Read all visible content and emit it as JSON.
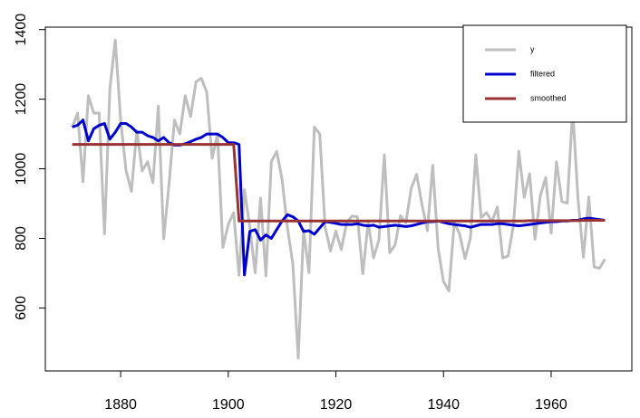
{
  "chart_data": {
    "type": "line",
    "x": [
      1871,
      1872,
      1873,
      1874,
      1875,
      1876,
      1877,
      1878,
      1879,
      1880,
      1881,
      1882,
      1883,
      1884,
      1885,
      1886,
      1887,
      1888,
      1889,
      1890,
      1891,
      1892,
      1893,
      1894,
      1895,
      1896,
      1897,
      1898,
      1899,
      1900,
      1901,
      1902,
      1903,
      1904,
      1905,
      1906,
      1907,
      1908,
      1909,
      1910,
      1911,
      1912,
      1913,
      1914,
      1915,
      1916,
      1917,
      1918,
      1919,
      1920,
      1921,
      1922,
      1923,
      1924,
      1925,
      1926,
      1927,
      1928,
      1929,
      1930,
      1931,
      1932,
      1933,
      1934,
      1935,
      1936,
      1937,
      1938,
      1939,
      1940,
      1941,
      1942,
      1943,
      1944,
      1945,
      1946,
      1947,
      1948,
      1949,
      1950,
      1951,
      1952,
      1953,
      1954,
      1955,
      1956,
      1957,
      1958,
      1959,
      1960,
      1961,
      1962,
      1963,
      1964,
      1965,
      1966,
      1967,
      1968,
      1969,
      1970
    ],
    "series": [
      {
        "name": "y",
        "color": "#bebebe",
        "values": [
          1120,
          1160,
          963,
          1210,
          1160,
          1160,
          813,
          1230,
          1370,
          1140,
          995,
          935,
          1110,
          994,
          1020,
          960,
          1180,
          799,
          958,
          1140,
          1100,
          1210,
          1150,
          1250,
          1260,
          1220,
          1030,
          1100,
          774,
          840,
          874,
          694,
          940,
          833,
          701,
          916,
          692,
          1020,
          1050,
          969,
          831,
          726,
          456,
          824,
          702,
          1120,
          1100,
          832,
          764,
          821,
          768,
          845,
          864,
          862,
          698,
          845,
          744,
          796,
          1040,
          759,
          781,
          865,
          845,
          944,
          984,
          897,
          822,
          1010,
          771,
          676,
          649,
          846,
          812,
          742,
          801,
          1040,
          860,
          874,
          848,
          890,
          744,
          749,
          838,
          1050,
          918,
          986,
          797,
          923,
          975,
          815,
          1020,
          906,
          901,
          1170,
          912,
          746,
          919,
          718,
          714,
          740
        ]
      },
      {
        "name": "filtered",
        "color": "#0000cd",
        "values": [
          1120,
          1125,
          1140,
          1080,
          1115,
          1125,
          1130,
          1085,
          1105,
          1130,
          1130,
          1120,
          1105,
          1105,
          1095,
          1090,
          1080,
          1090,
          1075,
          1068,
          1068,
          1072,
          1078,
          1085,
          1090,
          1100,
          1100,
          1100,
          1090,
          1075,
          1075,
          1070,
          695,
          820,
          825,
          795,
          810,
          800,
          825,
          850,
          868,
          862,
          850,
          820,
          822,
          812,
          830,
          848,
          846,
          843,
          840,
          840,
          840,
          842,
          838,
          836,
          838,
          832,
          834,
          836,
          838,
          836,
          834,
          836,
          840,
          844,
          848,
          848,
          850,
          846,
          842,
          840,
          838,
          836,
          832,
          836,
          840,
          840,
          840,
          842,
          842,
          840,
          838,
          836,
          838,
          840,
          842,
          844,
          846,
          848,
          848,
          850,
          850,
          852,
          852,
          856,
          858,
          856,
          854,
          852
        ]
      },
      {
        "name": "smoothed",
        "color": "#993333",
        "values": [
          1070,
          1070,
          1070,
          1070,
          1070,
          1070,
          1070,
          1070,
          1070,
          1070,
          1070,
          1070,
          1070,
          1070,
          1070,
          1070,
          1070,
          1070,
          1070,
          1070,
          1070,
          1070,
          1070,
          1070,
          1070,
          1070,
          1070,
          1070,
          1070,
          1070,
          1070,
          850,
          850,
          850,
          850,
          850,
          850,
          850,
          850,
          850,
          850,
          850,
          850,
          850,
          850,
          850,
          850,
          850,
          850,
          850,
          850,
          850,
          850,
          850,
          850,
          850,
          850,
          850,
          850,
          850,
          850,
          850,
          850,
          850,
          850,
          850,
          850,
          850,
          850,
          850,
          850,
          850,
          850,
          850,
          850,
          850,
          850,
          850,
          850,
          850,
          850,
          850,
          850,
          850,
          850,
          851,
          851,
          851,
          851,
          851,
          851,
          851,
          851,
          851,
          851,
          852,
          852,
          852,
          852,
          852
        ]
      }
    ],
    "xlim": [
      1866,
      1975
    ],
    "xticks": [
      1880,
      1900,
      1920,
      1940,
      1960
    ],
    "ylim": [
      419,
      1407
    ],
    "yticks": [
      600,
      800,
      1000,
      1200,
      1400
    ],
    "grid": false,
    "legend": "top-right"
  }
}
